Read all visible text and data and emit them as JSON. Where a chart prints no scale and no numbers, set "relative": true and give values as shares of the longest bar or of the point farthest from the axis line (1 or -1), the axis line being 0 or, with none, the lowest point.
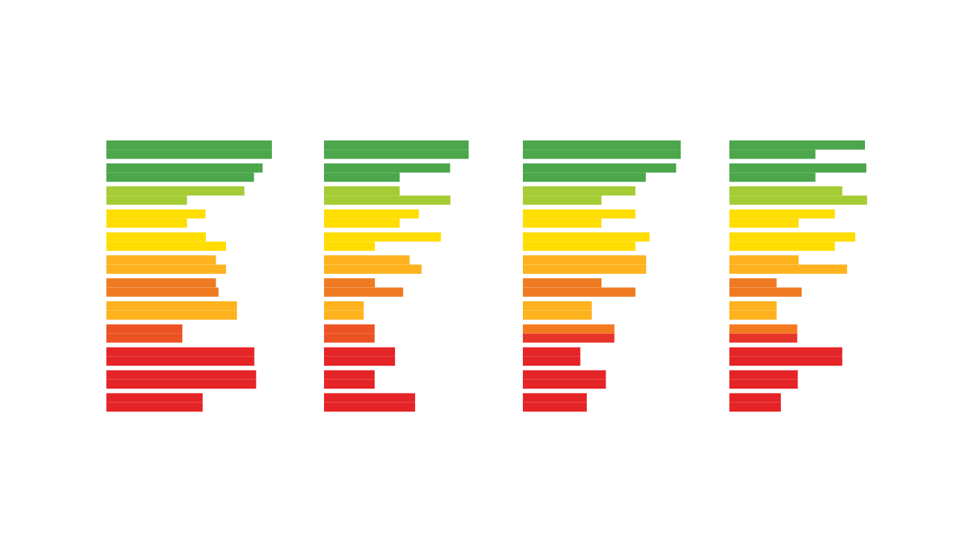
{
  "chart_data": [
    {
      "type": "bar",
      "orientation": "horizontal",
      "relative": true,
      "tick_labels": false,
      "categories": [
        null,
        null,
        null,
        null,
        null,
        null,
        null,
        null,
        null,
        null,
        null,
        null,
        null,
        null,
        null,
        null,
        null,
        null,
        null,
        null,
        null,
        null,
        null,
        null
      ],
      "values": [
        1,
        1,
        0.944,
        0.892,
        0.834,
        0.487,
        0.599,
        0.487,
        0.601,
        0.723,
        0.662,
        0.723,
        0.662,
        0.678,
        0.789,
        0.789,
        0.459,
        0.459,
        0.894,
        0.894,
        0.905,
        0.905,
        0.582,
        0.582
      ],
      "colors": [
        "#4ca64c",
        "#4ca64c",
        "#4ca64c",
        "#4ca64c",
        "#a5cc34",
        "#a5cc34",
        "#ffdd00",
        "#ffdd00",
        "#ffdd00",
        "#ffdd00",
        "#fdb21e",
        "#fdb21e",
        "#f07a22",
        "#f07a22",
        "#fdb21e",
        "#fdb21e",
        "#ec5224",
        "#ec5224",
        "#e52427",
        "#e52427",
        "#e52427",
        "#e52427",
        "#e52427",
        "#e52427"
      ]
    },
    {
      "type": "bar",
      "orientation": "horizontal",
      "relative": true,
      "tick_labels": false,
      "categories": [
        null,
        null,
        null,
        null,
        null,
        null,
        null,
        null,
        null,
        null,
        null,
        null,
        null,
        null,
        null,
        null,
        null,
        null,
        null,
        null,
        null,
        null,
        null,
        null
      ],
      "values": [
        1,
        1,
        0.872,
        0.523,
        0.523,
        0.874,
        0.656,
        0.523,
        0.808,
        0.352,
        0.592,
        0.675,
        0.352,
        0.547,
        0.274,
        0.274,
        0.35,
        0.35,
        0.491,
        0.491,
        0.35,
        0.35,
        0.63,
        0.63
      ],
      "colors": [
        "#4ca64c",
        "#4ca64c",
        "#4ca64c",
        "#4ca64c",
        "#a5cc34",
        "#a5cc34",
        "#ffdd00",
        "#ffdd00",
        "#ffdd00",
        "#ffdd00",
        "#fdb21e",
        "#fdb21e",
        "#f07a22",
        "#f07a22",
        "#fdb21e",
        "#fdb21e",
        "#ec5224",
        "#ec5224",
        "#e52427",
        "#e52427",
        "#e52427",
        "#e52427",
        "#e52427",
        "#e52427"
      ]
    },
    {
      "type": "bar",
      "orientation": "horizontal",
      "relative": true,
      "tick_labels": false,
      "categories": [
        null,
        null,
        null,
        null,
        null,
        null,
        null,
        null,
        null,
        null,
        null,
        null,
        null,
        null,
        null,
        null,
        null,
        null,
        null,
        null,
        null,
        null,
        null,
        null
      ],
      "values": [
        1,
        1,
        0.971,
        0.779,
        0.713,
        0.498,
        0.713,
        0.498,
        0.803,
        0.713,
        0.781,
        0.781,
        0.498,
        0.713,
        0.437,
        0.437,
        0.58,
        0.58,
        0.364,
        0.364,
        0.526,
        0.526,
        0.405,
        0.405
      ],
      "colors": [
        "#4ca64c",
        "#4ca64c",
        "#4ca64c",
        "#4ca64c",
        "#a5cc34",
        "#a5cc34",
        "#ffdd00",
        "#ffdd00",
        "#ffdd00",
        "#ffdd00",
        "#fdb21e",
        "#fdb21e",
        "#f07a22",
        "#f07a22",
        "#fdb21e",
        "#fdb21e",
        "#f47a20",
        "#e8352a",
        "#e52427",
        "#e52427",
        "#e52427",
        "#e52427",
        "#e52427",
        "#e52427"
      ]
    },
    {
      "type": "bar",
      "orientation": "horizontal",
      "relative": true,
      "tick_labels": false,
      "categories": [
        null,
        null,
        null,
        null,
        null,
        null,
        null,
        null,
        null,
        null,
        null,
        null,
        null,
        null,
        null,
        null,
        null,
        null,
        null,
        null,
        null,
        null,
        null,
        null
      ],
      "values": [
        0.985,
        0.625,
        0.995,
        0.625,
        0.82,
        1,
        0.766,
        0.503,
        0.914,
        0.766,
        0.503,
        0.855,
        0.343,
        0.525,
        0.343,
        0.343,
        0.493,
        0.493,
        0.82,
        0.82,
        0.497,
        0.497,
        0.374,
        0.374
      ],
      "colors": [
        "#4ca64c",
        "#4ca64c",
        "#4ca64c",
        "#4ca64c",
        "#a5cc34",
        "#a5cc34",
        "#ffdd00",
        "#ffdd00",
        "#ffdd00",
        "#ffdd00",
        "#fdb21e",
        "#fdb21e",
        "#f07a22",
        "#f07a22",
        "#fdb21e",
        "#fdb21e",
        "#f47a20",
        "#e8352a",
        "#e52427",
        "#e52427",
        "#e52427",
        "#e52427",
        "#e52427",
        "#e52427"
      ]
    }
  ]
}
